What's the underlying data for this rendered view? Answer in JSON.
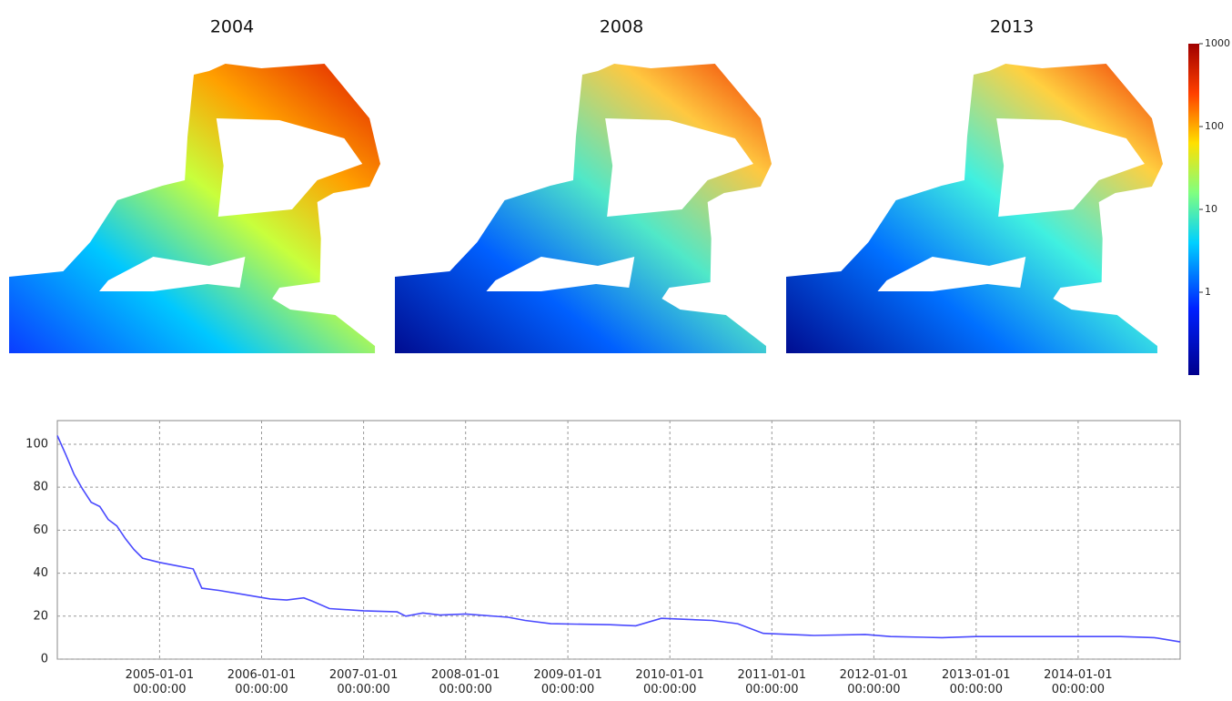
{
  "maps": {
    "titles": [
      "2004",
      "2008",
      "2013"
    ],
    "colorbar": {
      "lim": [
        0.1,
        1000
      ],
      "ticks": [
        1,
        10,
        100,
        1000
      ],
      "log": true
    }
  },
  "chart_data": {
    "type": "line",
    "color": "#4a4aff",
    "grid": true,
    "xlim": [
      "2004-01-01",
      "2015-01-01"
    ],
    "xticks": [
      {
        "value": "2005-01-01",
        "label": "2005-01-01 00:00:00"
      },
      {
        "value": "2006-01-01",
        "label": "2006-01-01 00:00:00"
      },
      {
        "value": "2007-01-01",
        "label": "2007-01-01 00:00:00"
      },
      {
        "value": "2008-01-01",
        "label": "2008-01-01 00:00:00"
      },
      {
        "value": "2009-01-01",
        "label": "2009-01-01 00:00:00"
      },
      {
        "value": "2010-01-01",
        "label": "2010-01-01 00:00:00"
      },
      {
        "value": "2011-01-01",
        "label": "2011-01-01 00:00:00"
      },
      {
        "value": "2012-01-01",
        "label": "2012-01-01 00:00:00"
      },
      {
        "value": "2013-01-01",
        "label": "2013-01-01 00:00:00"
      },
      {
        "value": "2014-01-01",
        "label": "2014-01-01 00:00:00"
      }
    ],
    "ylim": [
      0,
      111
    ],
    "yticks": [
      0,
      20,
      40,
      60,
      80,
      100
    ],
    "x": [
      "2004-01-01",
      "2004-02-01",
      "2004-03-01",
      "2004-04-01",
      "2004-05-01",
      "2004-06-01",
      "2004-07-01",
      "2004-08-01",
      "2004-09-01",
      "2004-10-01",
      "2004-11-01",
      "2005-01-01",
      "2005-03-01",
      "2005-05-01",
      "2005-06-01",
      "2005-08-01",
      "2005-11-01",
      "2006-02-01",
      "2006-04-01",
      "2006-06-01",
      "2006-07-01",
      "2006-09-01",
      "2007-01-01",
      "2007-05-01",
      "2007-06-01",
      "2007-08-01",
      "2007-10-01",
      "2008-01-01",
      "2008-06-01",
      "2008-08-01",
      "2008-11-01",
      "2009-06-01",
      "2009-09-01",
      "2009-12-01",
      "2010-06-01",
      "2010-09-01",
      "2010-12-01",
      "2011-06-01",
      "2011-12-01",
      "2012-03-01",
      "2012-09-01",
      "2013-01-01",
      "2013-06-01",
      "2013-12-01",
      "2014-06-01",
      "2014-10-01",
      "2015-01-01"
    ],
    "values": [
      104,
      95,
      86,
      79,
      73,
      71,
      65,
      62,
      56,
      51,
      47,
      45,
      43.5,
      42,
      33,
      32,
      30,
      28,
      27.5,
      28.5,
      27,
      23.5,
      22.5,
      22,
      20,
      21.5,
      20.5,
      21,
      19.5,
      18,
      16.5,
      16,
      15.5,
      19,
      18,
      16.5,
      12,
      11,
      11.5,
      10.5,
      10,
      10.5,
      10.5,
      10.5,
      10.5,
      10,
      8
    ]
  }
}
